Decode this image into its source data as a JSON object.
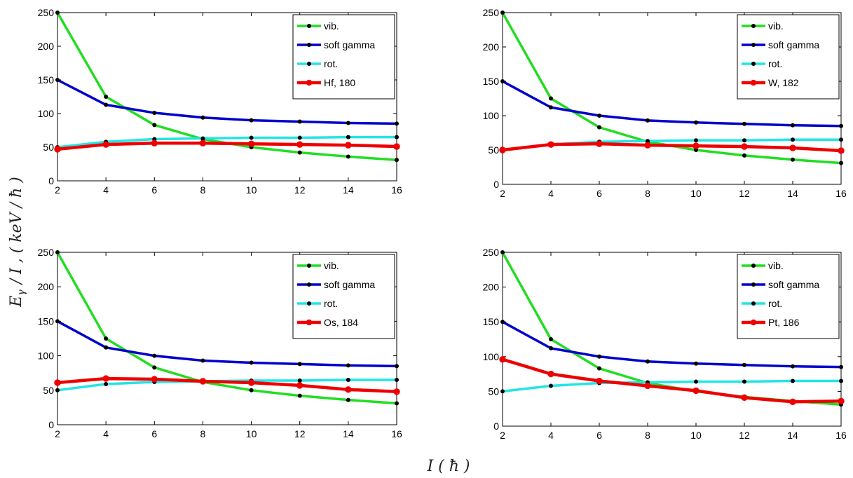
{
  "figure": {
    "ylabel": "E_γ / I , ( keV / ħ )",
    "ylabel_parts": {
      "E": "E",
      "gamma": "γ",
      "rest": "/ I , ( keV / ħ )"
    },
    "xlabel": "I ( ħ )"
  },
  "chart_data": [
    {
      "type": "line",
      "x": [
        2,
        4,
        6,
        8,
        10,
        12,
        14,
        16
      ],
      "xlim": [
        2,
        16
      ],
      "ylim": [
        0,
        250
      ],
      "xticks": [
        "2",
        "4",
        "6",
        "8",
        "10",
        "12",
        "14",
        "16"
      ],
      "yticks": [
        "0",
        "50",
        "100",
        "150",
        "200",
        "250"
      ],
      "grid": false,
      "legend_position": "top-right",
      "series": [
        {
          "name": "vib.",
          "color": "#22dd22",
          "values": [
            250,
            125,
            83,
            62,
            50,
            42,
            36,
            31
          ]
        },
        {
          "name": "soft gamma",
          "color": "#0000cc",
          "values": [
            150,
            113,
            101,
            94,
            90,
            88,
            86,
            85
          ]
        },
        {
          "name": "rot.",
          "color": "#22e5e5",
          "values": [
            50,
            58,
            62,
            63,
            64,
            64,
            65,
            65
          ]
        },
        {
          "name": "Hf, 180",
          "color": "#ee0000",
          "values": [
            47,
            54,
            56,
            56,
            55,
            54,
            53,
            51
          ]
        }
      ]
    },
    {
      "type": "line",
      "x": [
        2,
        4,
        6,
        8,
        10,
        12,
        14,
        16
      ],
      "xlim": [
        2,
        16
      ],
      "ylim": [
        0,
        250
      ],
      "xticks": [
        "2",
        "4",
        "6",
        "8",
        "10",
        "12",
        "14",
        "16"
      ],
      "yticks": [
        "0",
        "50",
        "100",
        "150",
        "200",
        "250"
      ],
      "grid": false,
      "legend_position": "top-right",
      "series": [
        {
          "name": "vib.",
          "color": "#22dd22",
          "values": [
            250,
            125,
            83,
            62,
            50,
            42,
            36,
            31
          ]
        },
        {
          "name": "soft gamma",
          "color": "#0000cc",
          "values": [
            150,
            112,
            100,
            93,
            90,
            88,
            86,
            85
          ]
        },
        {
          "name": "rot.",
          "color": "#22e5e5",
          "values": [
            50,
            58,
            62,
            63,
            64,
            64,
            65,
            65
          ]
        },
        {
          "name": "W, 182",
          "color": "#ee0000",
          "values": [
            50,
            58,
            59,
            57,
            56,
            55,
            53,
            49
          ]
        }
      ]
    },
    {
      "type": "line",
      "x": [
        2,
        4,
        6,
        8,
        10,
        12,
        14,
        16
      ],
      "xlim": [
        2,
        16
      ],
      "ylim": [
        0,
        250
      ],
      "xticks": [
        "2",
        "4",
        "6",
        "8",
        "10",
        "12",
        "14",
        "16"
      ],
      "yticks": [
        "0",
        "50",
        "100",
        "150",
        "200",
        "250"
      ],
      "grid": false,
      "legend_position": "top-right",
      "series": [
        {
          "name": "vib.",
          "color": "#22dd22",
          "values": [
            250,
            125,
            83,
            62,
            50,
            42,
            36,
            31
          ]
        },
        {
          "name": "soft gamma",
          "color": "#0000cc",
          "values": [
            150,
            112,
            100,
            93,
            90,
            88,
            86,
            85
          ]
        },
        {
          "name": "rot.",
          "color": "#22e5e5",
          "values": [
            50,
            59,
            62,
            63,
            64,
            64,
            65,
            65
          ]
        },
        {
          "name": "Os, 184",
          "color": "#ee0000",
          "values": [
            61,
            67,
            66,
            63,
            61,
            57,
            51,
            48
          ]
        }
      ]
    },
    {
      "type": "line",
      "x": [
        2,
        4,
        6,
        8,
        10,
        12,
        14,
        16
      ],
      "xlim": [
        2,
        16
      ],
      "ylim": [
        0,
        250
      ],
      "xticks": [
        "2",
        "4",
        "6",
        "8",
        "10",
        "12",
        "14",
        "16"
      ],
      "yticks": [
        "0",
        "50",
        "100",
        "150",
        "200",
        "250"
      ],
      "grid": false,
      "legend_position": "top-right",
      "series": [
        {
          "name": "vib.",
          "color": "#22dd22",
          "values": [
            250,
            125,
            83,
            62,
            50,
            42,
            36,
            31
          ]
        },
        {
          "name": "soft gamma",
          "color": "#0000cc",
          "values": [
            150,
            112,
            100,
            93,
            90,
            88,
            86,
            85
          ]
        },
        {
          "name": "rot.",
          "color": "#22e5e5",
          "values": [
            50,
            58,
            62,
            63,
            64,
            64,
            65,
            65
          ]
        },
        {
          "name": "Pt, 186",
          "color": "#ee0000",
          "values": [
            96,
            75,
            65,
            58,
            51,
            41,
            35,
            36
          ]
        }
      ]
    }
  ]
}
